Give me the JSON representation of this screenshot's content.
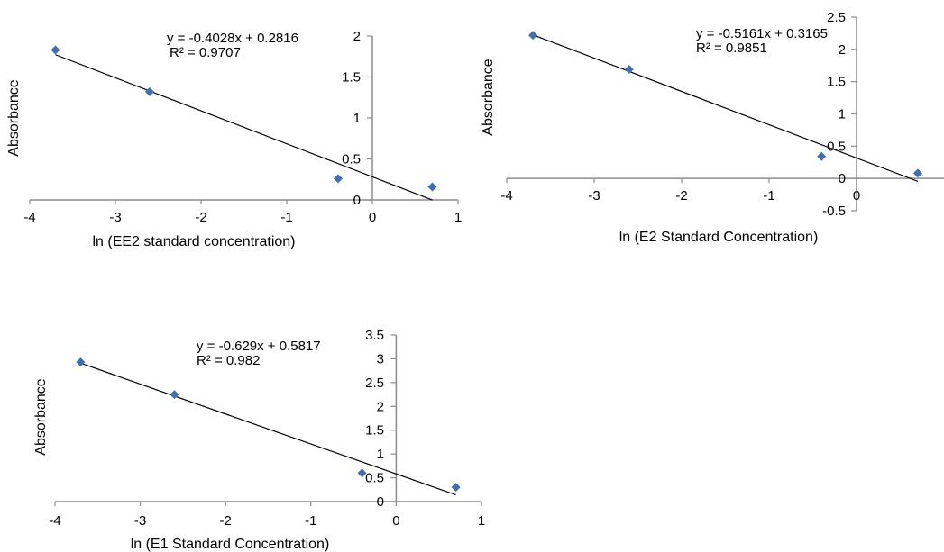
{
  "chart_data": [
    {
      "type": "scatter",
      "title": "",
      "xlabel": "ln (EE2 standard concentration)",
      "ylabel": "Absorbance",
      "xlim": [
        -4,
        1
      ],
      "ylim": [
        0,
        2
      ],
      "x_ticks": [
        "-4",
        "-3",
        "-2",
        "-1",
        "0",
        "1"
      ],
      "y_ticks": [
        "0",
        "0.5",
        "1",
        "1.5",
        "2"
      ],
      "points": [
        {
          "x": -3.7,
          "y": 1.83
        },
        {
          "x": -2.6,
          "y": 1.32
        },
        {
          "x": -0.4,
          "y": 0.26
        },
        {
          "x": 0.7,
          "y": 0.16
        }
      ],
      "trendline": {
        "slope": -0.4028,
        "intercept": 0.2816
      },
      "equation": "y = -0.4028x + 0.2816",
      "r_squared": "R² = 0.9707",
      "grid": false,
      "marker_color": "#3f6fb5"
    },
    {
      "type": "scatter",
      "title": "",
      "xlabel": "ln (E2 Standard Concentration)",
      "ylabel": "Absorbance",
      "xlim": [
        -4,
        1
      ],
      "ylim": [
        -0.5,
        2.5
      ],
      "x_ticks": [
        "-4",
        "-3",
        "-2",
        "-1",
        "0"
      ],
      "y_ticks": [
        "-0.5",
        "0",
        "0.5",
        "1",
        "1.5",
        "2",
        "2.5"
      ],
      "points": [
        {
          "x": -3.7,
          "y": 2.22
        },
        {
          "x": -2.6,
          "y": 1.69
        },
        {
          "x": -0.4,
          "y": 0.34
        },
        {
          "x": 0.7,
          "y": 0.08
        }
      ],
      "trendline": {
        "slope": -0.5161,
        "intercept": 0.3165
      },
      "equation": "y = -0.5161x + 0.3165",
      "r_squared": "R² = 0.9851",
      "grid": false,
      "marker_color": "#3f6fb5"
    },
    {
      "type": "scatter",
      "title": "",
      "xlabel": "ln (E1 Standard Concentration)",
      "ylabel": "Absorbance",
      "xlim": [
        -4,
        1
      ],
      "ylim": [
        0,
        3.5
      ],
      "x_ticks": [
        "-4",
        "-3",
        "-2",
        "-1",
        "0",
        "1"
      ],
      "y_ticks": [
        "0",
        "0.5",
        "1",
        "1.5",
        "2",
        "2.5",
        "3",
        "3.5"
      ],
      "points": [
        {
          "x": -3.7,
          "y": 2.93
        },
        {
          "x": -2.6,
          "y": 2.25
        },
        {
          "x": -0.4,
          "y": 0.6
        },
        {
          "x": 0.7,
          "y": 0.3
        }
      ],
      "trendline": {
        "slope": -0.629,
        "intercept": 0.5817
      },
      "equation": "y = -0.629x + 0.5817",
      "r_squared": "R² = 0.982",
      "grid": false,
      "marker_color": "#3f6fb5"
    }
  ]
}
